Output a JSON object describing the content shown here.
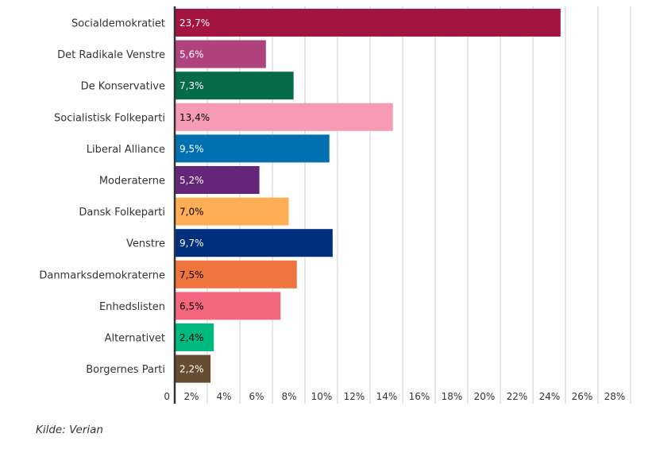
{
  "chart_data": {
    "type": "bar",
    "orientation": "horizontal",
    "title": "",
    "xlabel": "",
    "ylabel": "",
    "xlim": [
      0,
      30
    ],
    "grid": true,
    "categories": [
      "Socialdemokratiet",
      "Det Radikale Venstre",
      "De Konservative",
      "Socialistisk Folkeparti",
      "Liberal Alliance",
      "Moderaterne",
      "Dansk Folkeparti",
      "Venstre",
      "Danmarksdemokraterne",
      "Enhedslisten",
      "Alternativet",
      "Borgernes Parti"
    ],
    "values": [
      23.7,
      5.6,
      7.3,
      13.4,
      9.5,
      5.2,
      7.0,
      9.7,
      7.5,
      6.5,
      2.4,
      2.2
    ],
    "value_labels": [
      "23,7%",
      "5,6%",
      "7,3%",
      "13,4%",
      "9,5%",
      "5,2%",
      "7,0%",
      "9,7%",
      "7,5%",
      "6,5%",
      "2,4%",
      "2,2%"
    ],
    "colors": [
      "#a31441",
      "#b0427e",
      "#066b48",
      "#f79bb5",
      "#0070b0",
      "#652578",
      "#ffae56",
      "#002f7e",
      "#ef753f",
      "#f4677e",
      "#00b97e",
      "#664c30"
    ],
    "label_colors": [
      "#ffffff",
      "#ffffff",
      "#ffffff",
      "#000000",
      "#ffffff",
      "#ffffff",
      "#000000",
      "#ffffff",
      "#000000",
      "#000000",
      "#000000",
      "#ffffff"
    ],
    "x_ticks": [
      0,
      2,
      4,
      6,
      8,
      10,
      12,
      14,
      16,
      18,
      20,
      22,
      24,
      26,
      28
    ],
    "x_tick_labels": [
      "0",
      "2%",
      "4%",
      "6%",
      "8%",
      "10%",
      "12%",
      "14%",
      "16%",
      "18%",
      "20%",
      "22%",
      "24%",
      "26%",
      "28%"
    ]
  },
  "source": "Kilde: Verian"
}
